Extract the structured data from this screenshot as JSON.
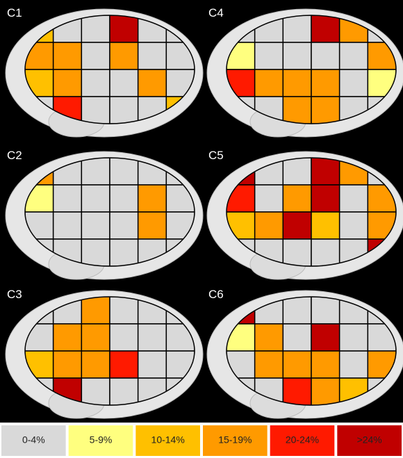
{
  "panels": [
    {
      "label": "C1",
      "cells": [
        2,
        0,
        0,
        5,
        0,
        0,
        3,
        3,
        0,
        3,
        0,
        0,
        2,
        3,
        0,
        0,
        3,
        0,
        0,
        4,
        0,
        0,
        0,
        2
      ]
    },
    {
      "label": "C2",
      "cells": [
        3,
        0,
        0,
        0,
        0,
        0,
        1,
        0,
        0,
        0,
        3,
        0,
        0,
        0,
        0,
        0,
        3,
        0,
        0,
        0,
        0,
        0,
        0,
        0
      ]
    },
    {
      "label": "C3",
      "cells": [
        0,
        0,
        3,
        0,
        0,
        0,
        0,
        3,
        3,
        0,
        0,
        0,
        2,
        3,
        3,
        4,
        0,
        0,
        0,
        5,
        0,
        0,
        0,
        0
      ]
    },
    {
      "label": "C4",
      "cells": [
        0,
        0,
        0,
        5,
        3,
        0,
        1,
        0,
        0,
        0,
        0,
        3,
        4,
        3,
        3,
        3,
        0,
        1,
        0,
        0,
        3,
        3,
        0,
        0
      ]
    },
    {
      "label": "C5",
      "cells": [
        5,
        0,
        0,
        5,
        3,
        0,
        4,
        0,
        3,
        5,
        0,
        3,
        2,
        3,
        5,
        2,
        0,
        3,
        0,
        0,
        0,
        0,
        0,
        5
      ]
    },
    {
      "label": "C6",
      "cells": [
        5,
        0,
        0,
        0,
        0,
        0,
        1,
        3,
        0,
        5,
        0,
        0,
        0,
        3,
        3,
        3,
        0,
        3,
        0,
        0,
        4,
        3,
        2,
        0
      ]
    }
  ],
  "legend": [
    {
      "label": "0-4%",
      "color": "#d9d9d9"
    },
    {
      "label": "5-9%",
      "color": "#ffff7f"
    },
    {
      "label": "10-14%",
      "color": "#ffc000"
    },
    {
      "label": "15-19%",
      "color": "#ff9a00"
    },
    {
      "label": "20-24%",
      "color": "#ff1a00"
    },
    {
      "label": ">24%",
      "color": "#c00000"
    }
  ]
}
